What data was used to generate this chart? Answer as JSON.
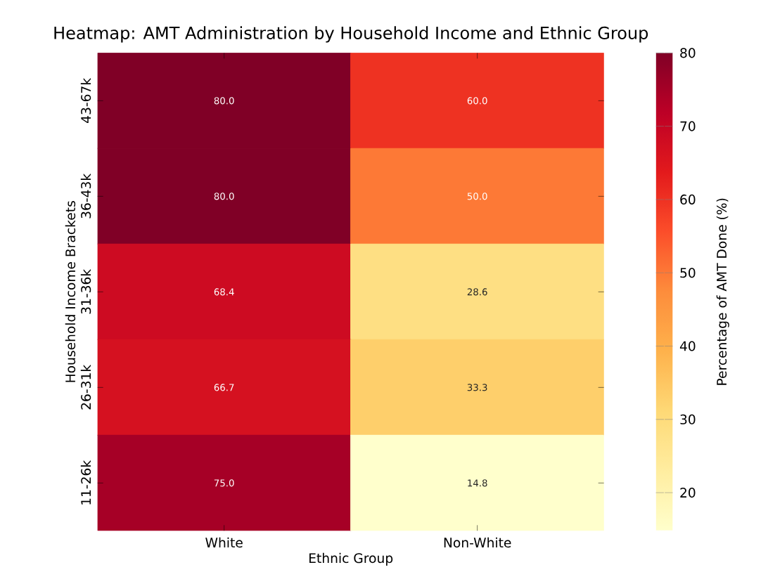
{
  "chart_data": {
    "type": "heatmap",
    "title": "Heatmap: AMT Administration by Household Income and Ethnic Group",
    "xlabel": "Ethnic Group",
    "ylabel": "Household Income Brackets",
    "clabel": "Percentage of AMT Done (%)",
    "categories": [
      "White",
      "Non-White"
    ],
    "y_categories": [
      "43-67k",
      "36-43k",
      "31-36k",
      "26-31k",
      "11-26k"
    ],
    "cells": [
      [
        80.0,
        60.0
      ],
      [
        80.0,
        50.0
      ],
      [
        68.4,
        28.6
      ],
      [
        66.7,
        33.3
      ],
      [
        75.0,
        14.8
      ]
    ],
    "cell_labels": [
      [
        "80.0",
        "60.0"
      ],
      [
        "80.0",
        "50.0"
      ],
      [
        "68.4",
        "28.6"
      ],
      [
        "66.7",
        "33.3"
      ],
      [
        "75.0",
        "14.8"
      ]
    ],
    "clim": [
      14.8,
      80
    ],
    "cticks": [
      20,
      30,
      40,
      50,
      60,
      70,
      80
    ]
  }
}
